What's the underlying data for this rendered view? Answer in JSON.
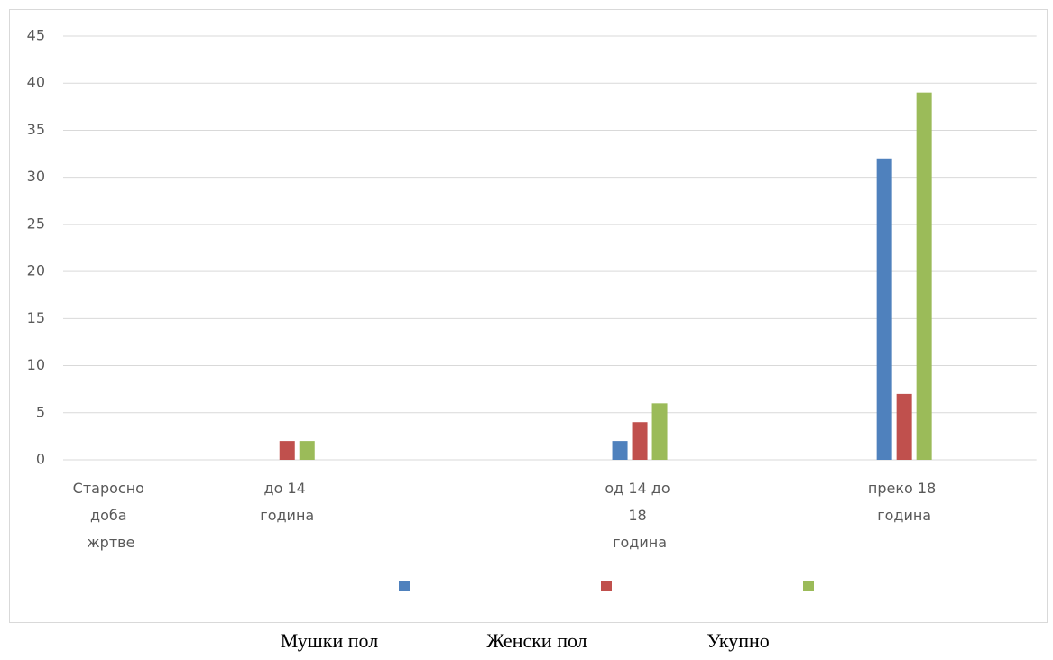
{
  "chart_data": {
    "type": "bar",
    "categories": [
      "Старосно доба жртве",
      null,
      "до 14 година",
      null,
      null,
      null,
      "од 14 до 18 година",
      null,
      null,
      "преко 18 година",
      null
    ],
    "series": [
      {
        "name": "Мушки пол",
        "color": "#4f81bd",
        "values": [
          null,
          null,
          null,
          null,
          null,
          null,
          2,
          null,
          null,
          32,
          null
        ]
      },
      {
        "name": "Женски пол",
        "color": "#c0504d",
        "values": [
          null,
          null,
          2,
          null,
          null,
          null,
          4,
          null,
          null,
          7,
          null
        ]
      },
      {
        "name": "Укупно",
        "color": "#9bbb59",
        "values": [
          null,
          null,
          2,
          null,
          null,
          null,
          6,
          null,
          null,
          39,
          null
        ]
      }
    ],
    "ylim": [
      0,
      45
    ],
    "yticks": [
      0,
      5,
      10,
      15,
      20,
      25,
      30,
      35,
      40,
      45
    ],
    "grid": true,
    "legend": "bottom"
  }
}
